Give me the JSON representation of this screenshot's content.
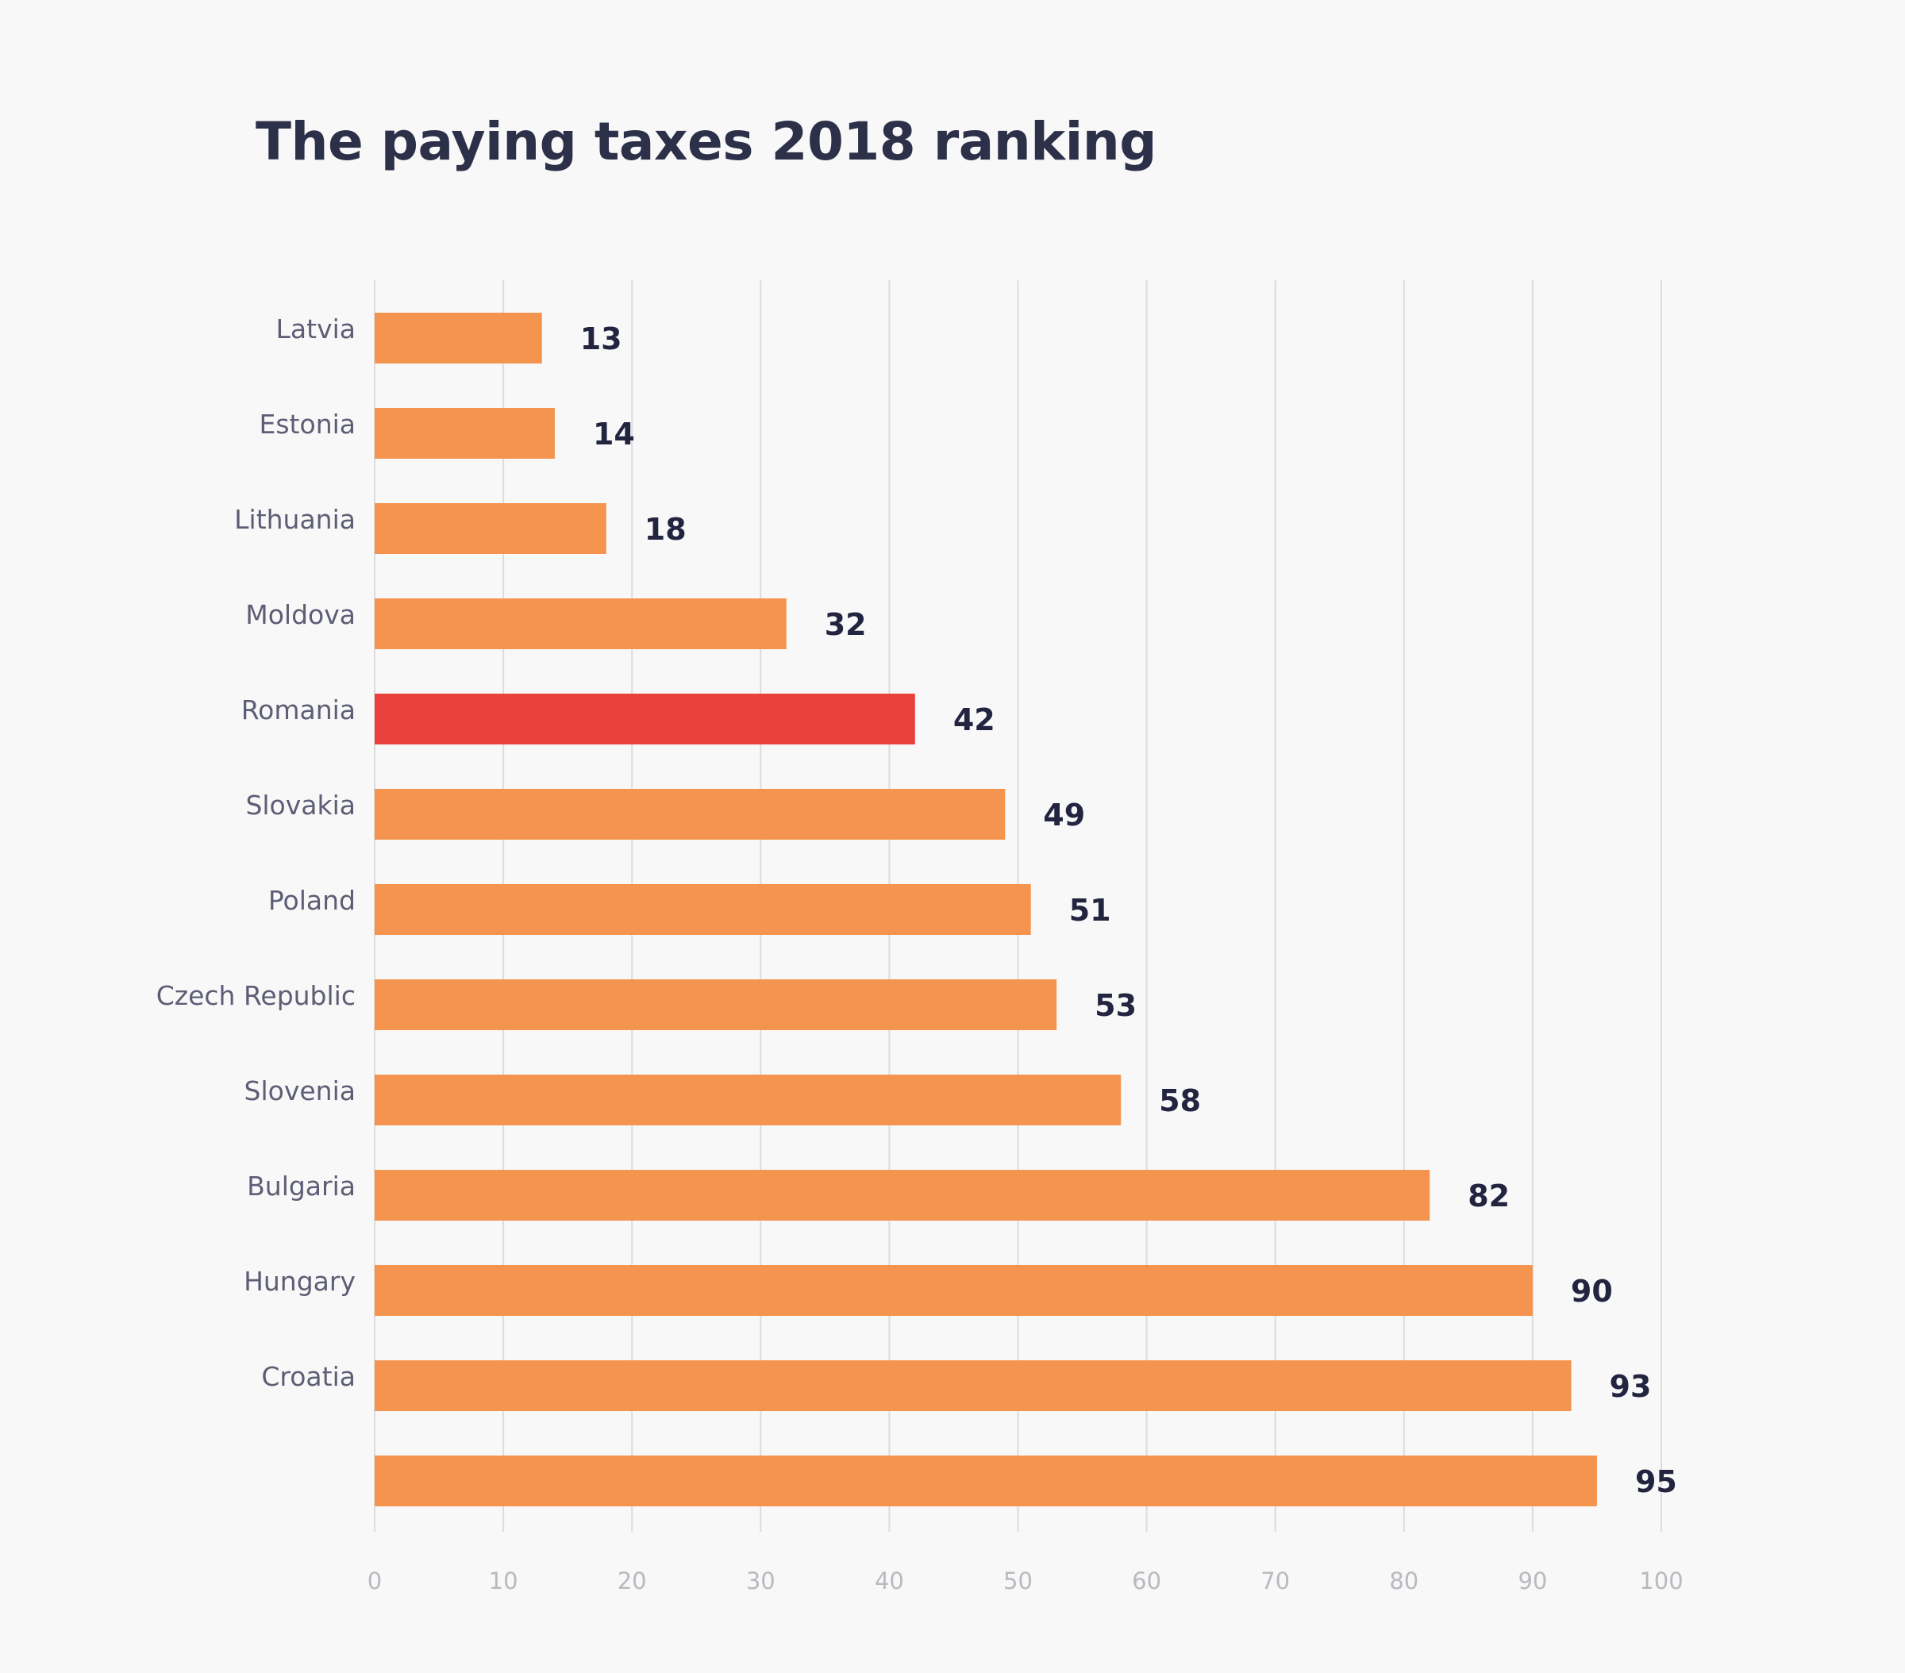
{
  "chart_data": {
    "type": "bar",
    "orientation": "horizontal",
    "title": "The paying taxes 2018 ranking",
    "xlabel": "",
    "ylabel": "",
    "xlim": [
      0,
      100
    ],
    "x_ticks": [
      0,
      10,
      20,
      30,
      40,
      50,
      60,
      70,
      80,
      90,
      100
    ],
    "grid": true,
    "legend": null,
    "categories": [
      "Latvia",
      "Estonia",
      "Lithuania",
      "Moldova",
      "Romania",
      "Slovakia",
      "Poland",
      "Czech Republic",
      "Slovenia",
      "Bulgaria",
      "Hungary",
      "Croatia",
      ""
    ],
    "values": [
      13,
      14,
      18,
      32,
      42,
      49,
      51,
      53,
      58,
      82,
      90,
      93,
      95
    ],
    "highlight": "Romania",
    "colors": {
      "bar": "#f4944e",
      "highlight_bar": "#ea413d",
      "value_label": "#23243f",
      "category_label": "#5d5e75",
      "tick_label": "#b9b9c0",
      "grid": "#dcdcdc",
      "title": "#2d3049",
      "background": "#f8f8f8"
    }
  }
}
